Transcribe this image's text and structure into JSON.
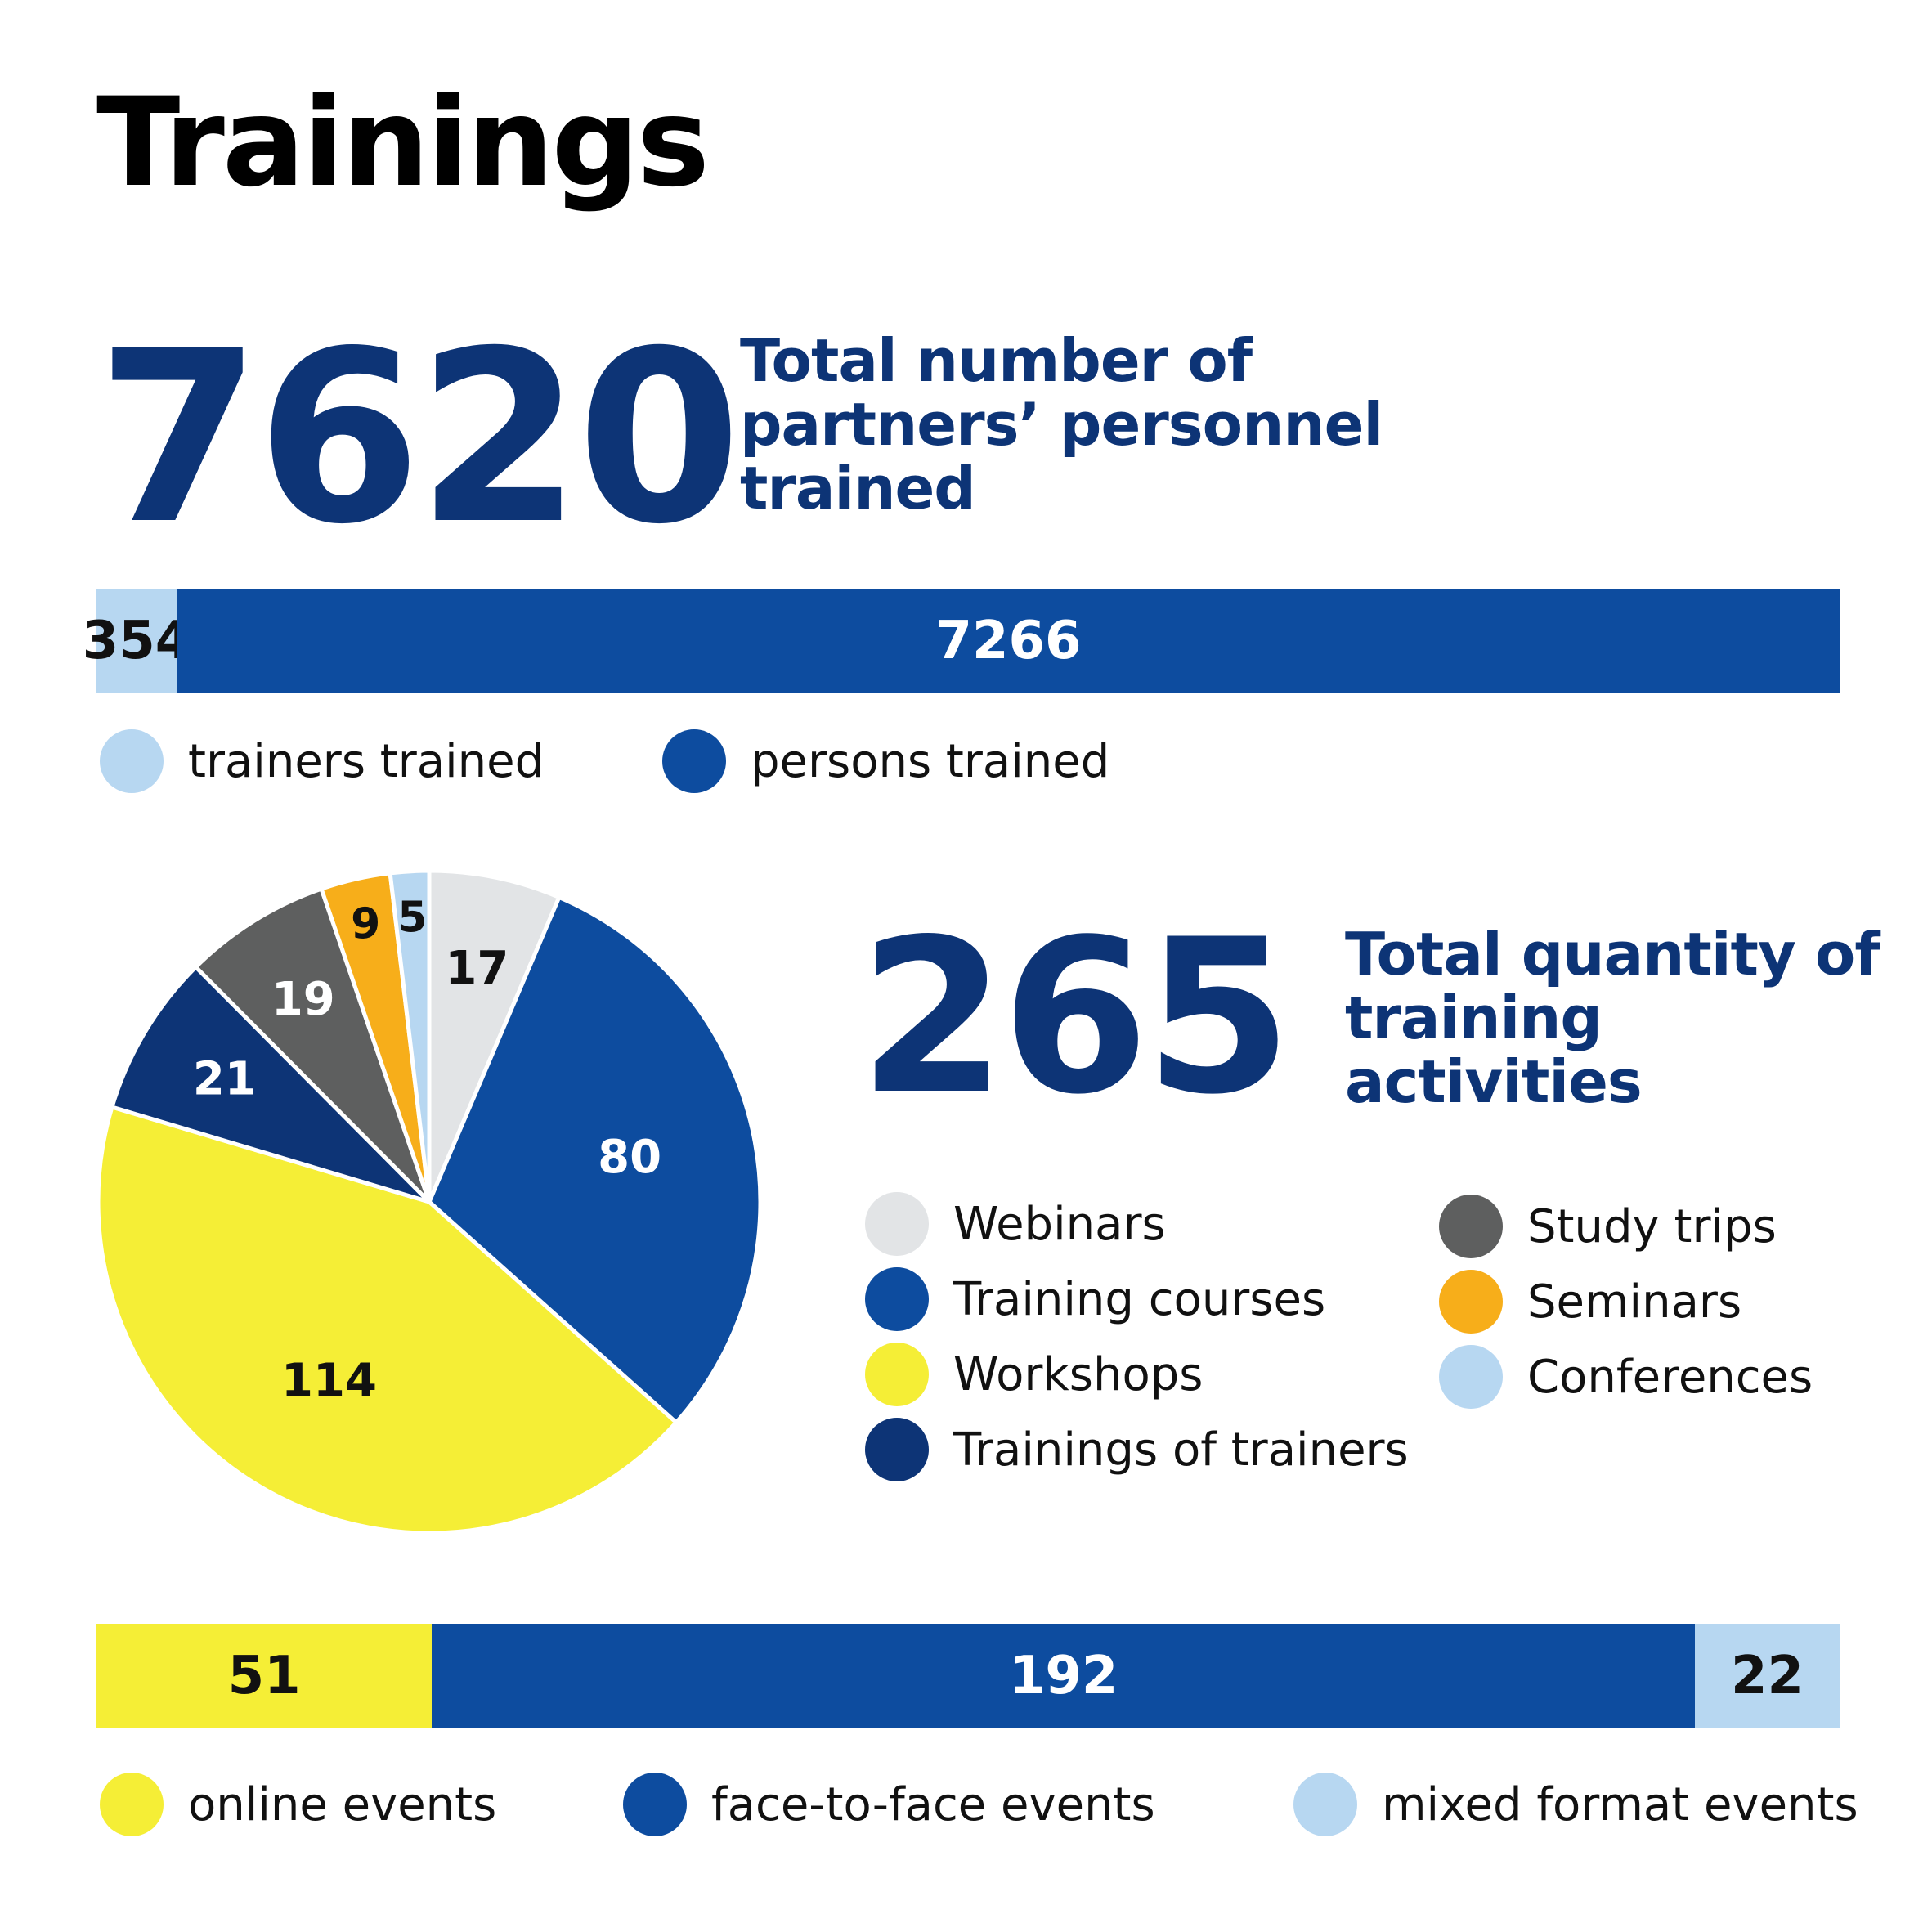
{
  "title": "Trainings",
  "personnel": {
    "total": "7620",
    "description": "Total number of partners’ personnel trained"
  },
  "activities": {
    "total": "265",
    "description": "Total quantity of training activities"
  },
  "colors": {
    "light_blue": "#b7d7f1",
    "blue": "#0d4c9f",
    "dark_blue": "#0d3476",
    "yellow": "#f5ee36",
    "light_gray": "#e2e4e6",
    "gray": "#5e5f5f",
    "orange": "#f7ae1a"
  },
  "chart_data": [
    {
      "type": "bar",
      "orientation": "horizontal-stacked",
      "series": [
        {
          "name": "trainers trained",
          "value": 354,
          "label": "354",
          "color": "#b7d7f1"
        },
        {
          "name": "persons trained",
          "value": 7266,
          "label": "7266",
          "color": "#0d4c9f"
        }
      ]
    },
    {
      "type": "pie",
      "slices": [
        {
          "name": "Webinars",
          "value": 17,
          "label": "17",
          "color": "#e2e4e6"
        },
        {
          "name": "Training courses",
          "value": 80,
          "label": "80",
          "color": "#0d4c9f"
        },
        {
          "name": "Workshops",
          "value": 114,
          "label": "114",
          "color": "#f5ee36"
        },
        {
          "name": "Trainings of trainers",
          "value": 21,
          "label": "21",
          "color": "#0d3476"
        },
        {
          "name": "Study trips",
          "value": 19,
          "label": "19",
          "color": "#5e5f5f"
        },
        {
          "name": "Seminars",
          "value": 9,
          "label": "9",
          "color": "#f7ae1a"
        },
        {
          "name": "Conferences",
          "value": 5,
          "label": "5",
          "color": "#b7d7f1"
        }
      ]
    },
    {
      "type": "bar",
      "orientation": "horizontal-stacked",
      "series": [
        {
          "name": "online events",
          "value": 51,
          "label": "51",
          "color": "#f5ee36"
        },
        {
          "name": "face-to-face events",
          "value": 192,
          "label": "192",
          "color": "#0d4c9f"
        },
        {
          "name": "mixed format events",
          "value": 22,
          "label": "22",
          "color": "#b7d7f1"
        }
      ]
    }
  ]
}
